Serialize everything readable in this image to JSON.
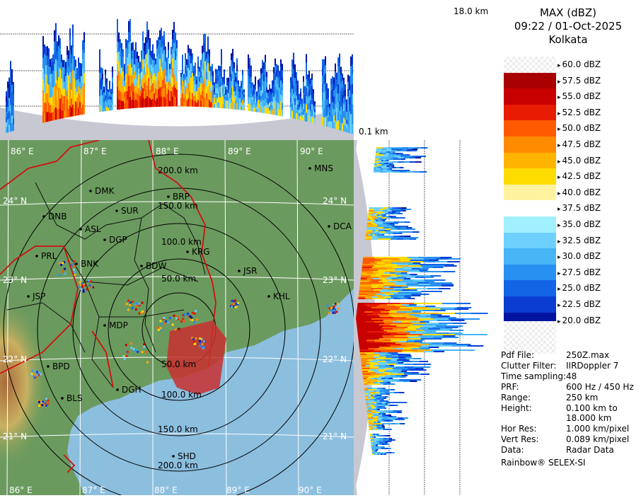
{
  "header": {
    "product": "MAX (dBZ)",
    "datetime": "09:22 / 01-Oct-2025",
    "station": "Kolkata"
  },
  "height_labels": {
    "top": "18.0 km",
    "bottom": "0.1 km"
  },
  "scale": [
    {
      "label": "60.0 dBZ",
      "color": "checker"
    },
    {
      "label": "57.5 dBZ",
      "color": "#a80000"
    },
    {
      "label": "55.0 dBZ",
      "color": "#c80000"
    },
    {
      "label": "52.5 dBZ",
      "color": "#e81c00"
    },
    {
      "label": "50.0 dBZ",
      "color": "#ff5a00"
    },
    {
      "label": "47.5 dBZ",
      "color": "#ff8c00"
    },
    {
      "label": "45.0 dBZ",
      "color": "#ffb400"
    },
    {
      "label": "42.5 dBZ",
      "color": "#ffdc00"
    },
    {
      "label": "40.0 dBZ",
      "color": "#fff3a0"
    },
    {
      "label": "37.5 dBZ",
      "color": "#ffffff"
    },
    {
      "label": "35.0 dBZ",
      "color": "#a0f0ff"
    },
    {
      "label": "32.5 dBZ",
      "color": "#6ed0ff"
    },
    {
      "label": "30.0 dBZ",
      "color": "#46b4f5"
    },
    {
      "label": "27.5 dBZ",
      "color": "#2890f0"
    },
    {
      "label": "25.0 dBZ",
      "color": "#1464e6"
    },
    {
      "label": "22.5 dBZ",
      "color": "#0a3cd2"
    },
    {
      "label": "20.0 dBZ",
      "color": "#0014a0"
    }
  ],
  "info": [
    {
      "key": "Pdf File:",
      "value": "250Z.max"
    },
    {
      "key": "Clutter Filter:",
      "value": "IIRDoppler 7"
    },
    {
      "key": "Time sampling:",
      "value": "48"
    },
    {
      "key": "PRF:",
      "value": "600 Hz / 450 Hz"
    },
    {
      "key": "Range:",
      "value": "250 km"
    },
    {
      "key": "Height:",
      "value": "0.100 km to"
    },
    {
      "key": "",
      "value": "18.000 km"
    },
    {
      "key": "Hor Res:",
      "value": "1.000 km/pixel"
    },
    {
      "key": "Vert Res:",
      "value": "0.089 km/pixel"
    },
    {
      "key": "Data:",
      "value": "Radar Data"
    }
  ],
  "footer": "Rainbow® SELEX-SI",
  "map": {
    "lon_labels": [
      "86° E",
      "87° E",
      "88° E",
      "89° E",
      "90° E"
    ],
    "lat_labels": [
      "24° N",
      "23° N",
      "22° N",
      "21° N"
    ],
    "range_labels": [
      "50.0 km",
      "100.0 km",
      "150.0 km",
      "200.0 km"
    ],
    "stations": [
      "MNS",
      "DMK",
      "BRP",
      "SUR",
      "DNB",
      "ASL",
      "DGP",
      "DCA",
      "KRG",
      "PRL",
      "BNK",
      "BDW",
      "JSR",
      "JSP",
      "KHL",
      "MDP",
      "BPD",
      "DGH",
      "BLS",
      "SHD"
    ]
  },
  "colors": {
    "land": "#6b9a5e",
    "sea": "#8cbede",
    "cone": "#c8c8d2",
    "boundary": "#d01010"
  }
}
